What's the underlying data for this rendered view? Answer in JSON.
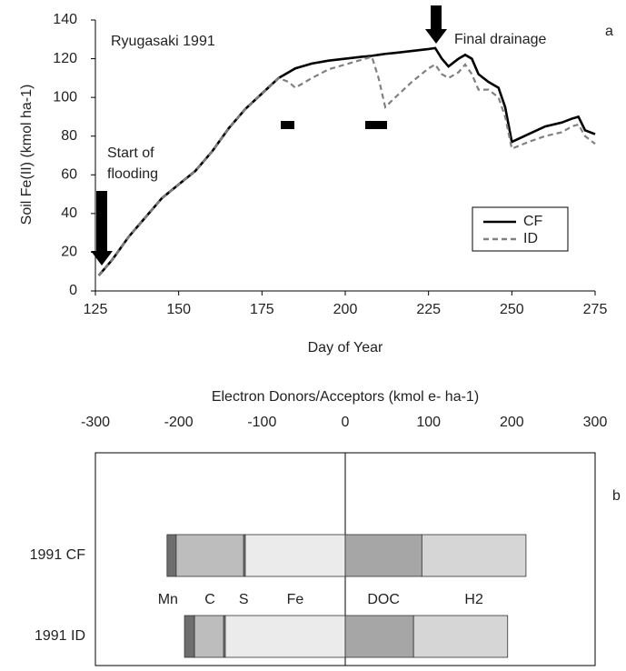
{
  "chart_data": [
    {
      "type": "line",
      "title": "Ryugasaki 1991",
      "panel": "a",
      "annotations": [
        "Final drainage",
        "Start of",
        "flooding"
      ],
      "x_label": "Day of Year",
      "y_label": "Soil Fe(II) (kmol ha-1)",
      "x": [
        126,
        130,
        135,
        140,
        145,
        150,
        155,
        160,
        165,
        170,
        175,
        180,
        183,
        185,
        190,
        195,
        200,
        205,
        208,
        210,
        212,
        215,
        220,
        225,
        227,
        229,
        231,
        234,
        236,
        238,
        240,
        243,
        246,
        248,
        250,
        255,
        260,
        265,
        268,
        270,
        272,
        275
      ],
      "series": [
        {
          "name": "CF",
          "color": "#000000",
          "line_style": "solid",
          "values": [
            8,
            16,
            28,
            38,
            48,
            55,
            62,
            72,
            84,
            94,
            102,
            110,
            113,
            115,
            117.5,
            119,
            120,
            121,
            121.5,
            122,
            122.5,
            123,
            124,
            125,
            125.5,
            120,
            116,
            120,
            122,
            120,
            112,
            108,
            105,
            95,
            77,
            81,
            85,
            87,
            89,
            90,
            83,
            81
          ]
        },
        {
          "name": "ID",
          "color": "#808080",
          "line_style": "dashed",
          "values": [
            8,
            16,
            28,
            38,
            48,
            55,
            62,
            72,
            84,
            94,
            102,
            110,
            108,
            105,
            110,
            114.5,
            117,
            119.5,
            121,
            110,
            95,
            100,
            108,
            115,
            117,
            112,
            110,
            113,
            117,
            112,
            104,
            104,
            100,
            90,
            73.5,
            77,
            80,
            82,
            85,
            86,
            80,
            76
          ]
        }
      ],
      "xlim": [
        125,
        275
      ],
      "xticks": [
        125,
        150,
        175,
        200,
        225,
        250,
        275
      ],
      "ylim": [
        0,
        140
      ],
      "yticks": [
        0,
        20,
        40,
        60,
        80,
        100,
        120,
        140
      ]
    },
    {
      "type": "stacked_bar_horizontal",
      "title": "Electron Donors/Acceptors (kmol e- ha-1)",
      "panel": "b",
      "categories": [
        "1991 CF",
        "1991 ID"
      ],
      "series": [
        {
          "name": "Mn",
          "color": "#6e6e6e",
          "values": [
            -11,
            -12
          ]
        },
        {
          "name": "C",
          "color": "#bdbdbd",
          "values": [
            -81,
            -35
          ]
        },
        {
          "name": "S",
          "color": "#8a8a8a",
          "values": [
            -2,
            -2
          ]
        },
        {
          "name": "Fe",
          "color": "#ebebeb",
          "values": [
            -120,
            -144
          ]
        },
        {
          "name": "DOC",
          "color": "#a6a6a6",
          "values": [
            92,
            82
          ]
        },
        {
          "name": "H2",
          "color": "#d6d6d6",
          "values": [
            125,
            113
          ]
        }
      ],
      "xlim": [
        -300,
        300
      ],
      "xticks": [
        -300,
        -200,
        -100,
        0,
        100,
        200,
        300
      ]
    }
  ]
}
